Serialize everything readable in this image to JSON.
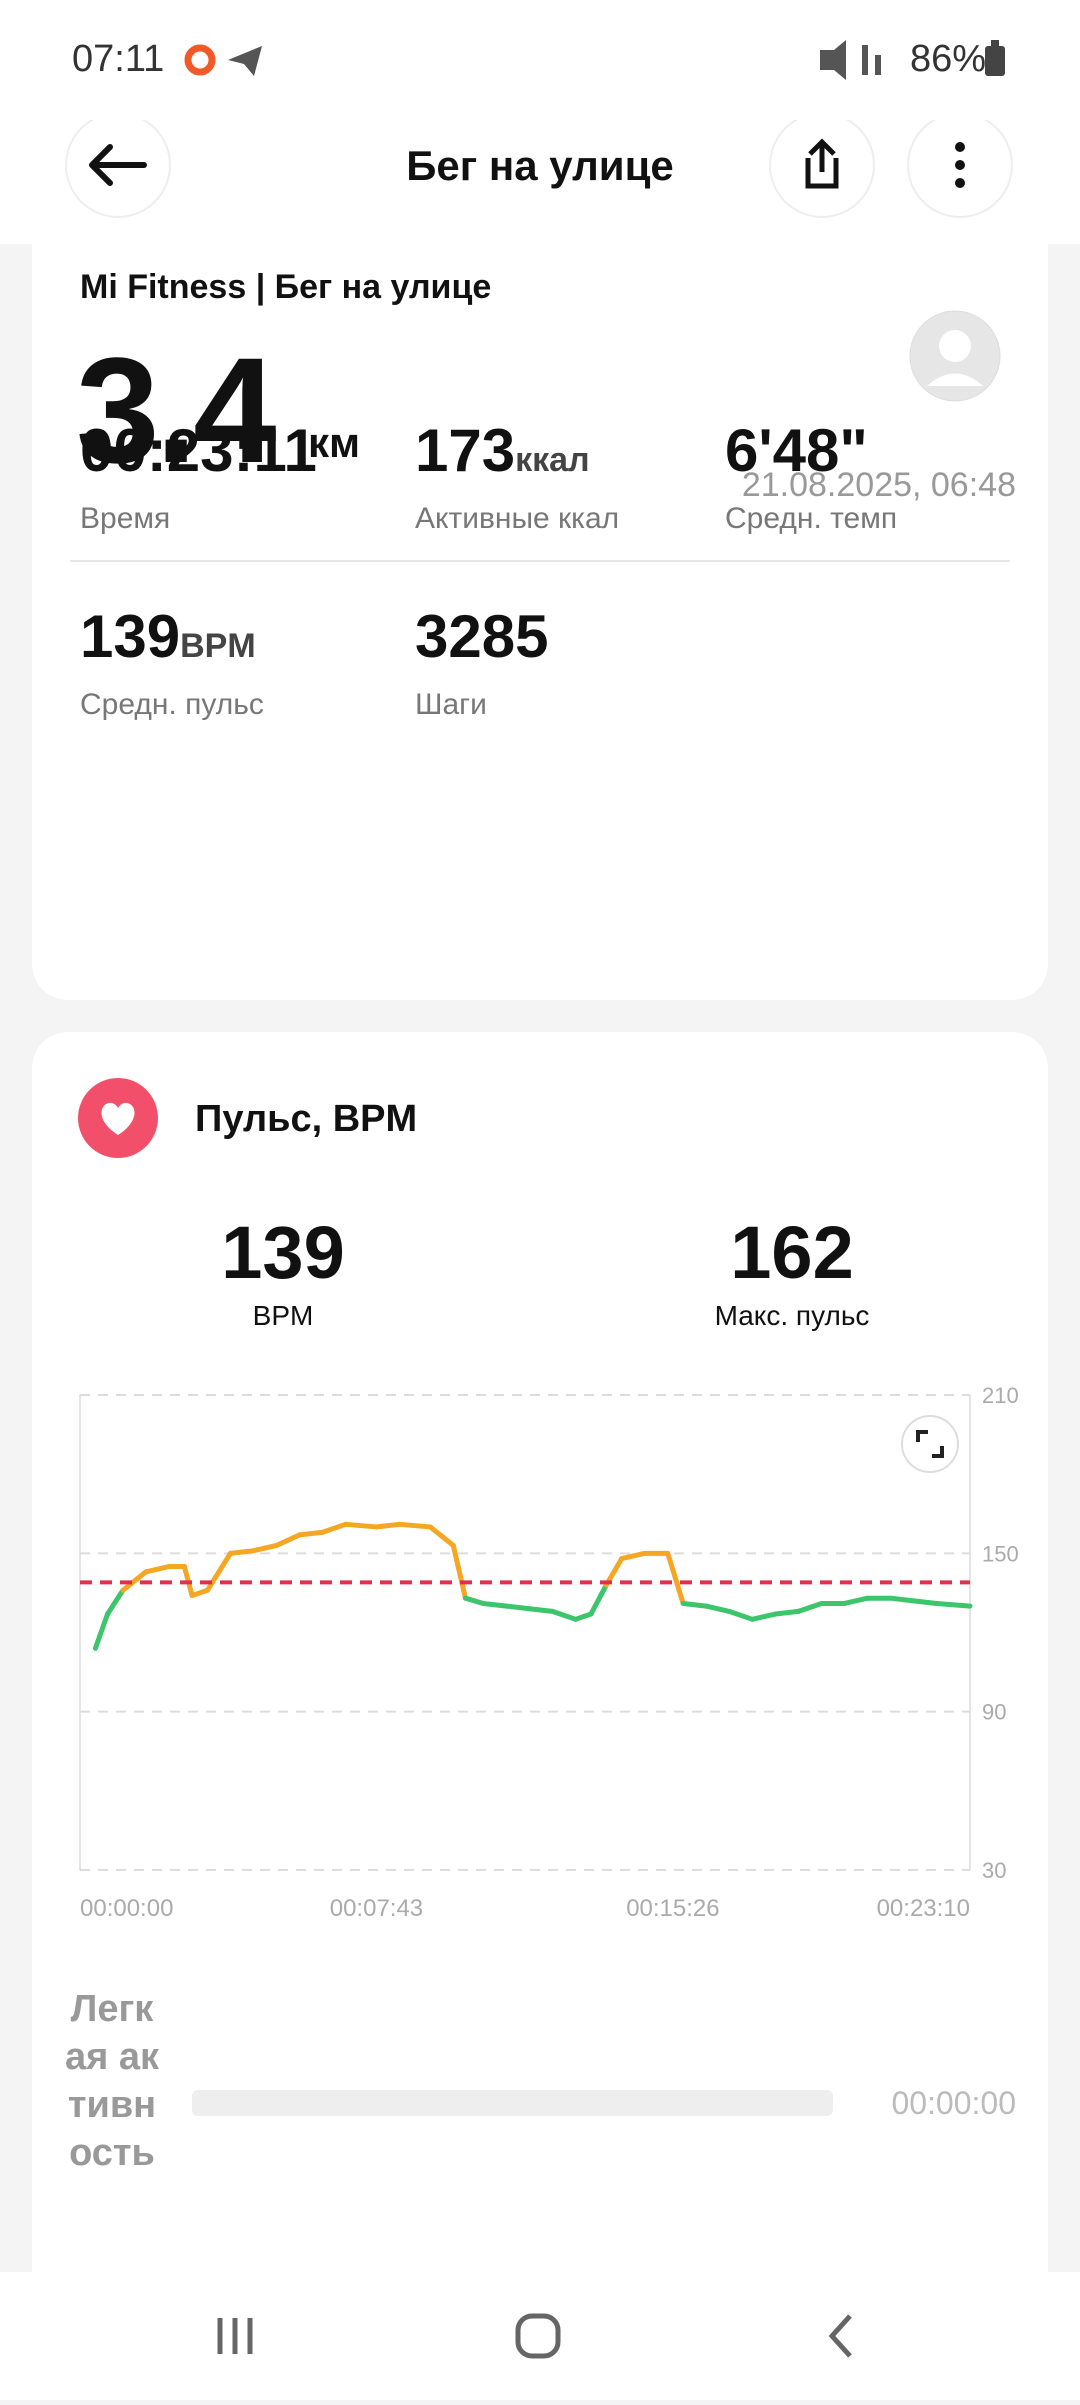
{
  "status": {
    "time": "07:11",
    "battery": "86%"
  },
  "header": {
    "title": "Бег на улице"
  },
  "summary": {
    "source": "Mi Fitness | Бег на улице",
    "distance": "3.4",
    "distance_unit": "км",
    "date": "21.08.2025, 06:48",
    "stats": [
      {
        "value": "00:23:11",
        "label": "Время"
      },
      {
        "value": "173",
        "unit": "ккал",
        "label": "Активные ккал"
      },
      {
        "value": "6'48\"",
        "label": "Средн. темп"
      },
      {
        "value": "139",
        "unit": "BPM",
        "label": "Средн. пульс"
      },
      {
        "value": "3285",
        "label": "Шаги"
      }
    ]
  },
  "heart": {
    "title": "Пульс, BPM",
    "avg_value": 139,
    "avg_unit": "BPM",
    "max_value": 162,
    "max_label": "Макс. пульс",
    "zone_label": "Легкая активность",
    "zone_time": "00:00:00"
  },
  "chart_data": {
    "type": "line",
    "x": [
      24,
      43,
      67,
      103,
      139,
      163,
      175,
      199,
      235,
      271,
      307,
      343,
      379,
      415,
      463,
      499,
      547,
      583,
      602,
      630,
      666,
      702,
      738,
      774,
      798,
      822,
      846,
      882,
      918,
      942,
      978,
      1014,
      1050,
      1086,
      1122,
      1158,
      1194,
      1230,
      1266,
      1302,
      1338,
      1390
    ],
    "values": [
      114,
      127,
      136,
      143,
      145,
      145,
      134,
      136,
      150,
      151,
      153,
      157,
      158,
      161,
      160,
      161,
      160,
      153,
      133,
      131,
      130,
      129,
      128,
      125,
      127,
      138,
      148,
      150,
      150,
      131,
      130,
      128,
      125,
      127,
      128,
      131,
      131,
      133,
      133,
      132,
      131,
      130
    ],
    "colors": {
      "low": "#3cc56a",
      "high": "#f5a623"
    },
    "zone_threshold": 134,
    "reference_color": "#e0304e",
    "xlim": [
      0,
      1390
    ],
    "xticks": [
      {
        "value": 0,
        "label": "00:00:00"
      },
      {
        "value": 463,
        "label": "00:07:43"
      },
      {
        "value": 926,
        "label": "00:15:26"
      },
      {
        "value": 1390,
        "label": "00:23:10"
      }
    ],
    "ylim": [
      30,
      210
    ],
    "yticks": [
      30,
      90,
      150,
      210
    ],
    "grid": true
  }
}
